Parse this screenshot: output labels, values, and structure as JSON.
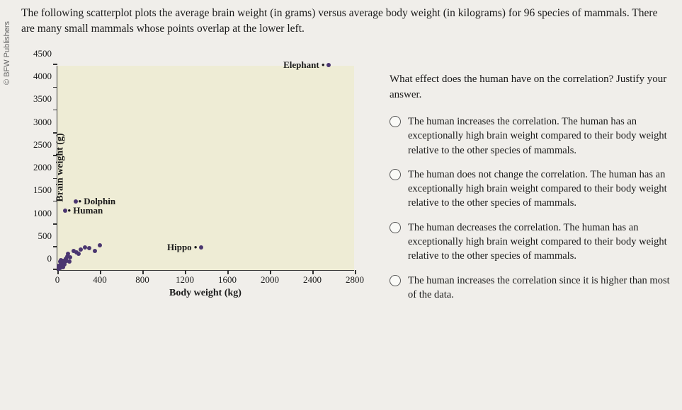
{
  "copyright": "© BFW Publishers",
  "question": "The following scatterplot plots the average brain weight (in grams) versus average body weight (in kilograms) for 96 species of mammals. There are many small mammals whose points overlap at the lower left.",
  "prompt": "What effect does the human have on the correlation? Justify your answer.",
  "options": [
    "The human increases the correlation. The human has an exceptionally high brain weight compared to their body weight relative to the other species of mammals.",
    "The human does not change the correlation. The human has an exceptionally high brain weight compared to their body weight relative to the other species of mammals.",
    "The human decreases the correlation. The human has an exceptionally high brain weight compared to their body weight relative to the other species of mammals.",
    "The human increases the correlation since it is higher than most of the data."
  ],
  "chart": {
    "type": "scatter",
    "xlabel": "Body weight (kg)",
    "ylabel": "Brain weight (g)",
    "xlim": [
      0,
      2800
    ],
    "ylim": [
      0,
      4500
    ],
    "x_ticks": [
      0,
      400,
      800,
      1200,
      1600,
      2000,
      2400,
      2800
    ],
    "y_ticks": [
      0,
      500,
      1000,
      1500,
      2000,
      2500,
      3000,
      3500,
      4000,
      4500
    ],
    "plot_bg": "#eeecd5",
    "point_color": "#4a3670",
    "labeled_points": [
      {
        "x": 2550,
        "y": 4500,
        "label": "Elephant",
        "label_side": "left"
      },
      {
        "x": 170,
        "y": 1500,
        "label": "Dolphin",
        "label_side": "right"
      },
      {
        "x": 70,
        "y": 1300,
        "label": "Human",
        "label_side": "right"
      },
      {
        "x": 1350,
        "y": 500,
        "label": "Hippo",
        "label_side": "left"
      }
    ],
    "cluster_points": [
      {
        "x": 20,
        "y": 50
      },
      {
        "x": 40,
        "y": 80
      },
      {
        "x": 30,
        "y": 120
      },
      {
        "x": 60,
        "y": 150
      },
      {
        "x": 50,
        "y": 200
      },
      {
        "x": 80,
        "y": 250
      },
      {
        "x": 25,
        "y": 180
      },
      {
        "x": 45,
        "y": 90
      },
      {
        "x": 70,
        "y": 180
      },
      {
        "x": 35,
        "y": 220
      },
      {
        "x": 55,
        "y": 60
      },
      {
        "x": 90,
        "y": 300
      },
      {
        "x": 15,
        "y": 100
      },
      {
        "x": 100,
        "y": 350
      },
      {
        "x": 120,
        "y": 280
      },
      {
        "x": 65,
        "y": 120
      },
      {
        "x": 85,
        "y": 200
      },
      {
        "x": 110,
        "y": 180
      },
      {
        "x": 10,
        "y": 30
      },
      {
        "x": 18,
        "y": 70
      },
      {
        "x": 28,
        "y": 40
      },
      {
        "x": 38,
        "y": 160
      },
      {
        "x": 48,
        "y": 130
      },
      {
        "x": 58,
        "y": 190
      },
      {
        "x": 150,
        "y": 420
      },
      {
        "x": 180,
        "y": 380
      },
      {
        "x": 220,
        "y": 450
      },
      {
        "x": 300,
        "y": 480
      },
      {
        "x": 350,
        "y": 420
      },
      {
        "x": 400,
        "y": 550
      },
      {
        "x": 260,
        "y": 500
      },
      {
        "x": 200,
        "y": 350
      }
    ]
  }
}
